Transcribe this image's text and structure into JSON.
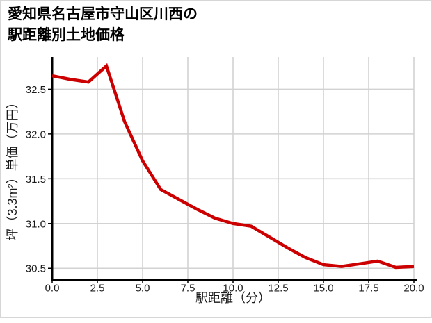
{
  "title": {
    "line1": "愛知県名古屋市守山区川西の",
    "line2": "駅距離別土地価格"
  },
  "chart_data": {
    "type": "line",
    "title": "愛知県名古屋市守山区川西の駅距離別土地価格",
    "xlabel": "駅距離（分）",
    "ylabel": "坪（3.3m²）単価（万円）",
    "x": [
      0,
      1,
      2,
      3,
      4,
      5,
      6,
      7,
      8,
      9,
      10,
      11,
      12,
      13,
      14,
      15,
      16,
      17,
      18,
      19,
      20
    ],
    "values": [
      32.65,
      32.61,
      32.58,
      32.76,
      32.14,
      31.7,
      31.38,
      31.27,
      31.16,
      31.06,
      31.0,
      30.97,
      30.85,
      30.73,
      30.62,
      30.54,
      30.52,
      30.55,
      30.58,
      30.51,
      30.52
    ],
    "xlim": [
      0,
      20
    ],
    "ylim": [
      30.37,
      32.86
    ],
    "x_ticks": [
      {
        "v": 0,
        "label": "0.0"
      },
      {
        "v": 2.5,
        "label": "2.5"
      },
      {
        "v": 5,
        "label": "5.0"
      },
      {
        "v": 7.5,
        "label": "7.5"
      },
      {
        "v": 10,
        "label": "10.0"
      },
      {
        "v": 12.5,
        "label": "12.5"
      },
      {
        "v": 15,
        "label": "15.0"
      },
      {
        "v": 17.5,
        "label": "17.5"
      },
      {
        "v": 20,
        "label": "20.0"
      }
    ],
    "y_ticks": [
      {
        "v": 30.5,
        "label": "30.5"
      },
      {
        "v": 31.0,
        "label": "31.0"
      },
      {
        "v": 31.5,
        "label": "31.5"
      },
      {
        "v": 32.0,
        "label": "32.0"
      },
      {
        "v": 32.5,
        "label": "32.5"
      }
    ],
    "grid": true,
    "legend": "none",
    "line_color": "#cc0000",
    "grid_color": "#d2d2d2",
    "axis_color": "#000000",
    "border_color": "#d6d6d6"
  }
}
